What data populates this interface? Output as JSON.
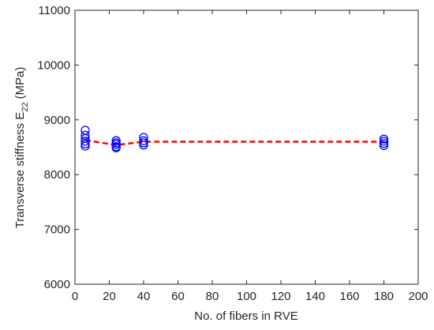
{
  "chart_data": {
    "type": "scatter",
    "xlabel": "No. of fibers in RVE",
    "ylabel": {
      "text": "Transverse stiffness E",
      "subscript": "22",
      "unit": "(MPa)"
    },
    "xlim": [
      0,
      200
    ],
    "xticks": [
      0,
      20,
      40,
      60,
      80,
      100,
      120,
      140,
      160,
      180,
      200
    ],
    "ylim": [
      6000,
      11000
    ],
    "yticks": [
      6000,
      7000,
      8000,
      9000,
      10000,
      11000
    ],
    "points": {
      "color": "#0000ff",
      "x": [
        6,
        6,
        6,
        6,
        6,
        6,
        24,
        24,
        24,
        24,
        24,
        40,
        40,
        40,
        40,
        180,
        180,
        180,
        180
      ],
      "y": [
        8810,
        8720,
        8660,
        8610,
        8560,
        8520,
        8620,
        8580,
        8550,
        8510,
        8490,
        8680,
        8620,
        8580,
        8540,
        8650,
        8610,
        8570,
        8530
      ]
    },
    "mean_line": {
      "color": "#ff0000",
      "dashed": true,
      "x": [
        6,
        24,
        40,
        180
      ],
      "y": [
        8630,
        8540,
        8600,
        8600
      ]
    }
  }
}
